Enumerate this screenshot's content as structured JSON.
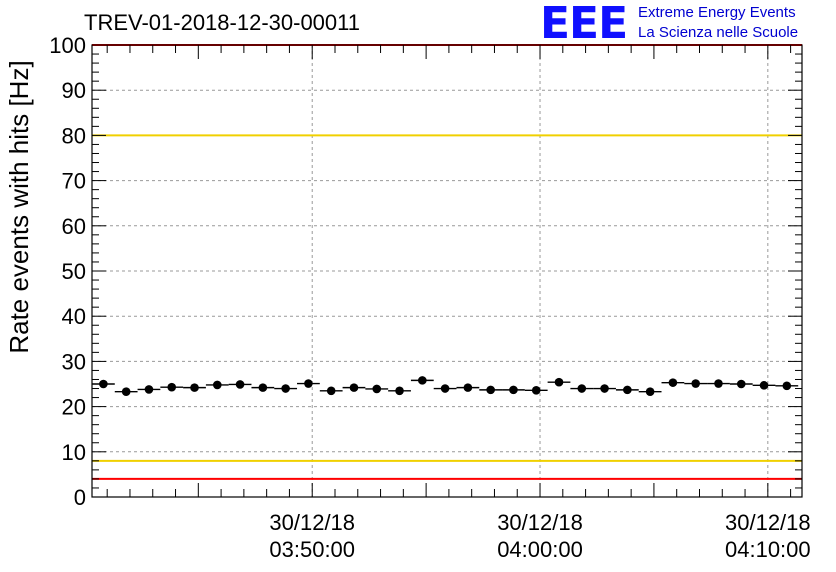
{
  "title": "TREV-01-2018-12-30-00011",
  "logo": {
    "mark": "EEE",
    "line1": "Extreme Energy Events",
    "line2": "La Scienza nelle Scuole"
  },
  "colors": {
    "points": "#000000",
    "red_limit": "#ff0000",
    "yellow_limit": "#f0d000",
    "grid": "#999999",
    "logo": "#1010ff"
  },
  "chart_data": {
    "type": "scatter",
    "title": "TREV-01-2018-12-30-00011",
    "xlabel": "",
    "ylabel": "Rate events with hits [Hz]",
    "ylim": [
      0,
      100
    ],
    "yticks": [
      0,
      10,
      20,
      30,
      40,
      50,
      60,
      70,
      80,
      90,
      100
    ],
    "grid": true,
    "x_tick_labels": [
      {
        "time": "03:50:00",
        "date": "30/12/18",
        "line1": "30/12/18",
        "line2": "03:50:00"
      },
      {
        "time": "04:00:00",
        "date": "30/12/18",
        "line1": "30/12/18",
        "line2": "04:00:00"
      },
      {
        "time": "04:10:00",
        "date": "30/12/18",
        "line1": "30/12/18",
        "line2": "04:10:00"
      }
    ],
    "xlim": [
      "2018-12-30T03:40:20",
      "2018-12-30T04:11:30"
    ],
    "bin_seconds": 60,
    "reference_lines": [
      {
        "value": 100,
        "color": "red"
      },
      {
        "value": 80,
        "color": "yellow"
      },
      {
        "value": 8,
        "color": "yellow"
      },
      {
        "value": 4,
        "color": "red"
      }
    ],
    "points": [
      {
        "x": "2018-12-30T03:40:50",
        "y": 25.0
      },
      {
        "x": "2018-12-30T03:41:50",
        "y": 23.3
      },
      {
        "x": "2018-12-30T03:42:50",
        "y": 23.8
      },
      {
        "x": "2018-12-30T03:43:50",
        "y": 24.3
      },
      {
        "x": "2018-12-30T03:44:50",
        "y": 24.2
      },
      {
        "x": "2018-12-30T03:45:50",
        "y": 24.8
      },
      {
        "x": "2018-12-30T03:46:50",
        "y": 24.9
      },
      {
        "x": "2018-12-30T03:47:50",
        "y": 24.2
      },
      {
        "x": "2018-12-30T03:48:50",
        "y": 24.0
      },
      {
        "x": "2018-12-30T03:49:50",
        "y": 25.1
      },
      {
        "x": "2018-12-30T03:50:50",
        "y": 23.5
      },
      {
        "x": "2018-12-30T03:51:50",
        "y": 24.2
      },
      {
        "x": "2018-12-30T03:52:50",
        "y": 23.9
      },
      {
        "x": "2018-12-30T03:53:50",
        "y": 23.5
      },
      {
        "x": "2018-12-30T03:54:50",
        "y": 25.8
      },
      {
        "x": "2018-12-30T03:55:50",
        "y": 24.0
      },
      {
        "x": "2018-12-30T03:56:50",
        "y": 24.2
      },
      {
        "x": "2018-12-30T03:57:50",
        "y": 23.7
      },
      {
        "x": "2018-12-30T03:58:50",
        "y": 23.7
      },
      {
        "x": "2018-12-30T03:59:50",
        "y": 23.6
      },
      {
        "x": "2018-12-30T04:00:50",
        "y": 25.4
      },
      {
        "x": "2018-12-30T04:01:50",
        "y": 24.0
      },
      {
        "x": "2018-12-30T04:02:50",
        "y": 24.0
      },
      {
        "x": "2018-12-30T04:03:50",
        "y": 23.7
      },
      {
        "x": "2018-12-30T04:04:50",
        "y": 23.3
      },
      {
        "x": "2018-12-30T04:05:50",
        "y": 25.3
      },
      {
        "x": "2018-12-30T04:06:50",
        "y": 25.1
      },
      {
        "x": "2018-12-30T04:07:50",
        "y": 25.1
      },
      {
        "x": "2018-12-30T04:08:50",
        "y": 25.0
      },
      {
        "x": "2018-12-30T04:09:50",
        "y": 24.7
      },
      {
        "x": "2018-12-30T04:10:50",
        "y": 24.6
      }
    ]
  }
}
